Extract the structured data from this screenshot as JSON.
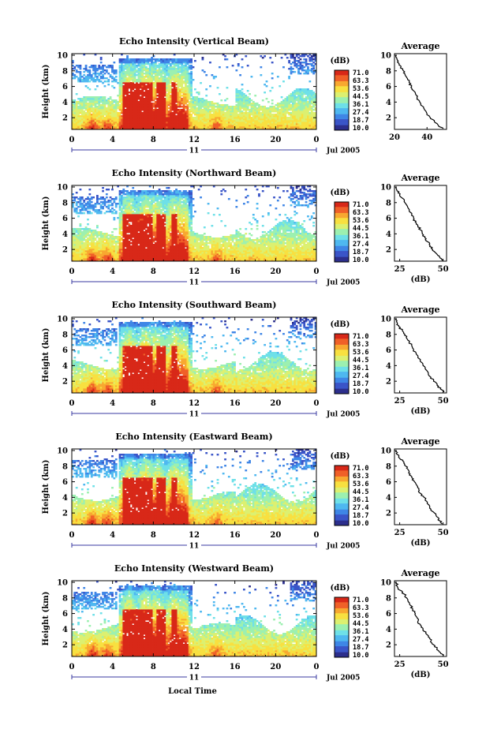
{
  "figure": {
    "x_axis_title": "Local Time",
    "date_label": "Jul 2005",
    "day_label": "11",
    "y_axis_title": "Height (km)",
    "colorbar_unit": "(dB)",
    "colorbar_ticks": [
      "71.0",
      "63.3",
      "53.6",
      "44.5",
      "36.1",
      "27.4",
      "18.7",
      "10.0"
    ],
    "average_title": "Average",
    "average_xlabel": "(dB)",
    "colors": {
      "scale": [
        "#2c2f8c",
        "#3a55c8",
        "#3f86e6",
        "#4fb8f0",
        "#6ee0e8",
        "#9cf0b0",
        "#dcf070",
        "#f8e040",
        "#f8a830",
        "#f06028",
        "#d82818"
      ]
    }
  },
  "chart_data": [
    {
      "type": "heatmap",
      "title": "Echo Intensity (Vertical Beam)",
      "x_ticks": [
        "0",
        "4",
        "8",
        "12",
        "16",
        "20",
        "0"
      ],
      "x_range": [
        0,
        24
      ],
      "y_ticks": [
        "2",
        "4",
        "6",
        "8",
        "10"
      ],
      "y_range": [
        0.5,
        10.2
      ],
      "colorbar_range": [
        10.0,
        71.0
      ],
      "profile": {
        "xlabel": "",
        "x_ticks": [
          "20",
          "40"
        ],
        "xlim": [
          20,
          52
        ],
        "heights": [
          10,
          9.5,
          9,
          8.5,
          8,
          7.5,
          7,
          6.5,
          6,
          5.5,
          5,
          4.5,
          4,
          3.5,
          3,
          2.5,
          2,
          1.5,
          1,
          0.6
        ],
        "values": [
          21,
          21.5,
          22.5,
          24,
          25.5,
          26.5,
          28,
          29,
          30.5,
          31.5,
          33,
          34,
          35.5,
          37,
          38.5,
          40,
          42,
          44.5,
          47,
          50
        ]
      }
    },
    {
      "type": "heatmap",
      "title": "Echo Intensity (Northward Beam)",
      "x_ticks": [
        "0",
        "4",
        "8",
        "12",
        "16",
        "20",
        "0"
      ],
      "x_range": [
        0,
        24
      ],
      "y_ticks": [
        "2",
        "4",
        "6",
        "8",
        "10"
      ],
      "y_range": [
        0.5,
        10.2
      ],
      "colorbar_range": [
        10.0,
        71.0
      ],
      "profile": {
        "xlabel": "(dB)",
        "x_ticks": [
          "25",
          "50"
        ],
        "xlim": [
          22,
          52
        ],
        "heights": [
          10,
          9.5,
          9,
          8.5,
          8,
          7.5,
          7,
          6.5,
          6,
          5.5,
          5,
          4.5,
          4,
          3.5,
          3,
          2.5,
          2,
          1.5,
          1,
          0.6
        ],
        "values": [
          23,
          23.5,
          25,
          27,
          28,
          29.5,
          30.5,
          32,
          33,
          34,
          35.5,
          37,
          38,
          39.5,
          41,
          42.5,
          44,
          46,
          48,
          50
        ]
      }
    },
    {
      "type": "heatmap",
      "title": "Echo Intensity (Southward Beam)",
      "x_ticks": [
        "0",
        "4",
        "8",
        "12",
        "16",
        "20",
        "0"
      ],
      "x_range": [
        0,
        24
      ],
      "y_ticks": [
        "2",
        "4",
        "6",
        "8",
        "10"
      ],
      "y_range": [
        0.5,
        10.2
      ],
      "colorbar_range": [
        10.0,
        71.0
      ],
      "profile": {
        "xlabel": "(dB)",
        "x_ticks": [
          "25",
          "50"
        ],
        "xlim": [
          22,
          52
        ],
        "heights": [
          10,
          9.5,
          9,
          8.5,
          8,
          7.5,
          7,
          6.5,
          6,
          5.5,
          5,
          4.5,
          4,
          3.5,
          3,
          2.5,
          2,
          1.5,
          1,
          0.6
        ],
        "values": [
          23,
          23.5,
          24.5,
          26.5,
          28,
          29,
          30.5,
          32,
          33,
          34.5,
          35.5,
          37,
          38.5,
          40,
          41.5,
          43,
          44.5,
          46.5,
          48.5,
          50.5
        ]
      }
    },
    {
      "type": "heatmap",
      "title": "Echo Intensity (Eastward Beam)",
      "x_ticks": [
        "0",
        "4",
        "8",
        "12",
        "16",
        "20",
        "0"
      ],
      "x_range": [
        0,
        24
      ],
      "y_ticks": [
        "2",
        "4",
        "6",
        "8",
        "10"
      ],
      "y_range": [
        0.5,
        10.2
      ],
      "colorbar_range": [
        10.0,
        71.0
      ],
      "profile": {
        "xlabel": "(dB)",
        "x_ticks": [
          "25",
          "50"
        ],
        "xlim": [
          22,
          52
        ],
        "heights": [
          10,
          9.5,
          9,
          8.5,
          8,
          7.5,
          7,
          6.5,
          6,
          5.5,
          5,
          4.5,
          4,
          3.5,
          3,
          2.5,
          2,
          1.5,
          1,
          0.6
        ],
        "values": [
          23,
          23.5,
          25,
          27.5,
          28.5,
          30,
          31,
          32,
          33.5,
          35,
          36,
          37,
          39,
          40.5,
          42,
          43,
          45,
          46.5,
          48,
          49.5
        ]
      }
    },
    {
      "type": "heatmap",
      "title": "Echo Intensity (Westward Beam)",
      "x_ticks": [
        "0",
        "4",
        "8",
        "12",
        "16",
        "20",
        "0"
      ],
      "x_range": [
        0,
        24
      ],
      "y_ticks": [
        "2",
        "4",
        "6",
        "8",
        "10"
      ],
      "y_range": [
        0.5,
        10.2
      ],
      "colorbar_range": [
        10.0,
        71.0
      ],
      "profile": {
        "xlabel": "(dB)",
        "x_ticks": [
          "25",
          "50"
        ],
        "xlim": [
          22,
          52
        ],
        "heights": [
          10,
          9.5,
          9,
          8.5,
          8,
          7.5,
          7,
          6.5,
          6,
          5.5,
          5,
          4.5,
          4,
          3.5,
          3,
          2.5,
          2,
          1.5,
          1,
          0.6
        ],
        "values": [
          23,
          23.5,
          25,
          27.5,
          29,
          30,
          31.5,
          32.5,
          34,
          35,
          35.5,
          37,
          38.5,
          40,
          41.5,
          43,
          44.5,
          46.5,
          48.5,
          50
        ]
      }
    }
  ]
}
